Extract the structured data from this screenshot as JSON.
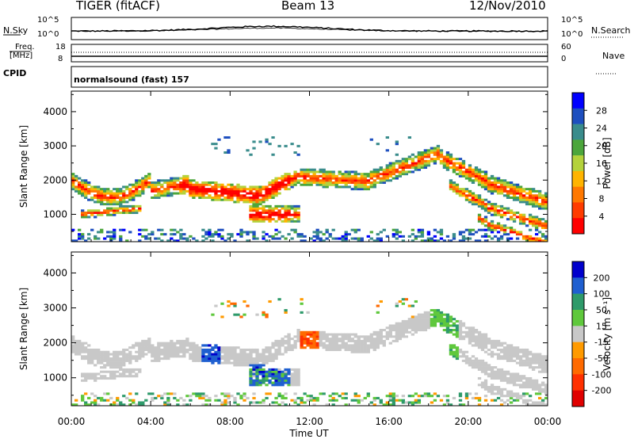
{
  "header": {
    "title": "TIGER (fitACF)",
    "beam": "Beam 13",
    "date": "12/Nov/2010"
  },
  "noise_panel": {
    "left_label": "N.Sky",
    "right_label": "N.Search",
    "ticks": {
      "high": "10^5",
      "low": "10^0"
    }
  },
  "freq_panel": {
    "left_label_1": "Freq.",
    "left_label_2": "[MHz]",
    "right_label": "Nave",
    "left_ticks": [
      "18",
      "8"
    ],
    "right_ticks": [
      "60",
      "0"
    ]
  },
  "cpid": {
    "label": "CPID",
    "value": "normalsound (fast) 157"
  },
  "chart_data": [
    {
      "type": "heatmap",
      "title": "",
      "xlabel": "Time UT",
      "ylabel": "Slant Range [km]",
      "x_ticks": [
        "00:00",
        "04:00",
        "08:00",
        "12:00",
        "16:00",
        "20:00",
        "00:00"
      ],
      "y_ticks": [
        1000,
        2000,
        3000,
        4000
      ],
      "ylim": [
        200,
        4600
      ],
      "colorbar": {
        "label": "Power [dB]",
        "ticks": [
          "4",
          "8",
          "12",
          "16",
          "20",
          "24",
          "28"
        ],
        "colors": [
          "#0000ff",
          "#1e4fbf",
          "#3a8c8c",
          "#4ca63c",
          "#b4d23c",
          "#ffb400",
          "#ff7800",
          "#ff3c00",
          "#ff0000"
        ]
      }
    },
    {
      "type": "heatmap",
      "title": "",
      "xlabel": "Time UT",
      "ylabel": "Slant Range [km]",
      "x_ticks": [
        "00:00",
        "04:00",
        "08:00",
        "12:00",
        "16:00",
        "20:00",
        "00:00"
      ],
      "y_ticks": [
        1000,
        2000,
        3000,
        4000
      ],
      "ylim": [
        200,
        4600
      ],
      "colorbar": {
        "label": "Velocity [m s⁻¹]",
        "ticks": [
          "200",
          "100",
          "50",
          "15",
          "-15",
          "-50",
          "-100",
          "-200"
        ],
        "colors": [
          "#0000cc",
          "#1f5fd0",
          "#2e9a6a",
          "#5fc83c",
          "#c8c8c8",
          "#ff9a00",
          "#ff6a00",
          "#ff3000",
          "#e00000"
        ]
      }
    }
  ]
}
